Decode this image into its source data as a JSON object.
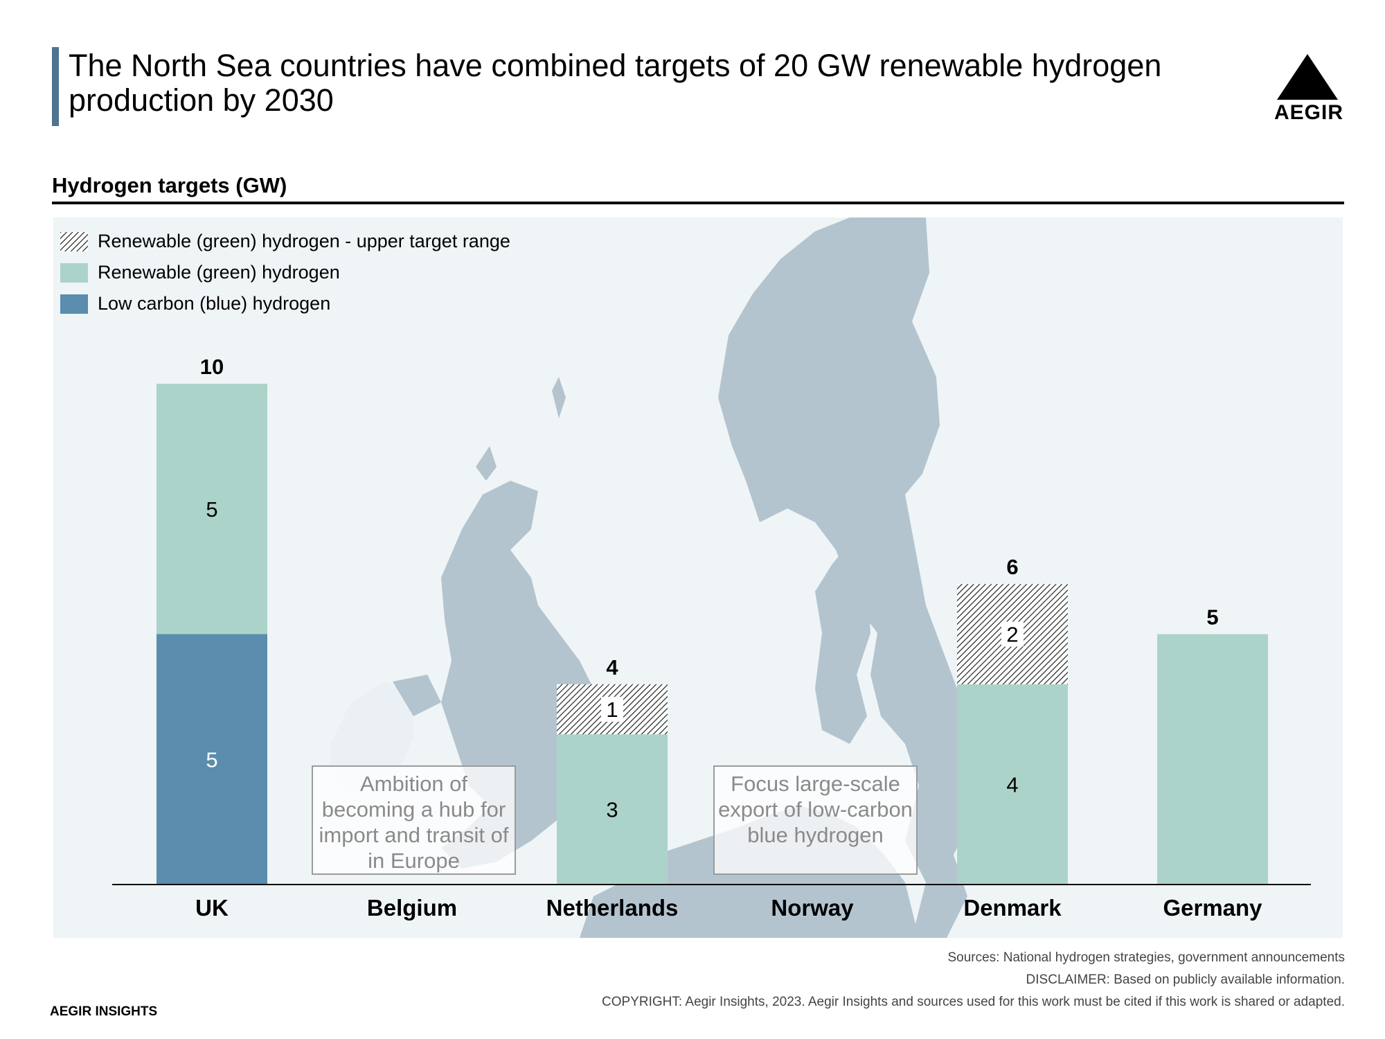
{
  "header": {
    "title": "The North Sea countries have combined targets of 20 GW renewable hydrogen production by 2030",
    "logo_text": "AEGIR"
  },
  "chart_section_label": "Hydrogen targets (GW)",
  "colors": {
    "blue": "#5a8dae",
    "green": "#acd3c9",
    "title_accent": "#4d7390",
    "map_land": "#b3c4cf",
    "map_bg": "#eff4f6"
  },
  "legend": [
    {
      "label": "Renewable (green) hydrogen - upper target range",
      "swatch": "hatch"
    },
    {
      "label": "Renewable (green) hydrogen",
      "swatch": "green"
    },
    {
      "label": "Low carbon (blue) hydrogen",
      "swatch": "blue"
    }
  ],
  "chart_data": {
    "type": "bar",
    "stacked": true,
    "categories": [
      "UK",
      "Belgium",
      "Netherlands",
      "Norway",
      "Denmark",
      "Germany"
    ],
    "series": [
      {
        "name": "Low carbon (blue) hydrogen",
        "values": [
          5,
          0,
          0,
          0,
          0,
          0
        ]
      },
      {
        "name": "Renewable (green) hydrogen",
        "values": [
          5,
          0,
          3,
          0,
          4,
          5
        ]
      },
      {
        "name": "Renewable (green) hydrogen - upper target range",
        "values": [
          0,
          0,
          1,
          0,
          2,
          0
        ]
      }
    ],
    "totals": [
      10,
      null,
      4,
      null,
      6,
      5
    ],
    "ylim": [
      0,
      10
    ],
    "legend_position": "top-left",
    "annotations": [
      {
        "category": "Belgium",
        "text": "Ambition of becoming a hub for import and transit of in Europe"
      },
      {
        "category": "Norway",
        "text": "Focus large-scale export of low-carbon blue hydrogen"
      }
    ]
  },
  "footer": {
    "sources": "Sources: National hydrogen strategies, government announcements",
    "disclaimer": "DISCLAIMER: Based on publicly available information.",
    "copyright": "COPYRIGHT: Aegir Insights, 2023. Aegir Insights and sources used for this work must be cited if this work is shared or adapted.",
    "brand": "AEGIR INSIGHTS"
  }
}
